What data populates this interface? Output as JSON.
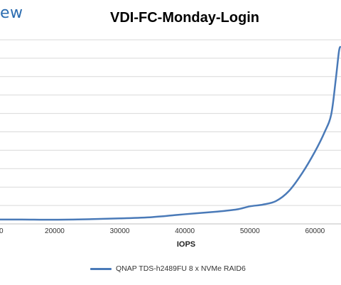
{
  "header": {
    "logo_text": "ew"
  },
  "chart_data": {
    "type": "line",
    "title": "VDI-FC-Monday-Login",
    "xlabel": "IOPS",
    "ylabel": "",
    "xlim": [
      11600,
      64000
    ],
    "x_ticks": [
      20000,
      30000,
      40000,
      50000,
      60000
    ],
    "x_tick_labels": [
      "20000",
      "30000",
      "40000",
      "50000",
      "60000"
    ],
    "y_gridlines": 11,
    "grid": "horizontal",
    "legend_position": "bottom",
    "series": [
      {
        "name": "QNAP TDS-h2489FU 8 x NVMe RAID6",
        "color": "#4a7ab8",
        "points": [
          [
            11600,
            1.0
          ],
          [
            15000,
            1.0
          ],
          [
            20000,
            0.95
          ],
          [
            25000,
            1.05
          ],
          [
            30000,
            1.25
          ],
          [
            35000,
            1.55
          ],
          [
            40000,
            2.2
          ],
          [
            45000,
            2.8
          ],
          [
            48000,
            3.3
          ],
          [
            50000,
            4.0
          ],
          [
            52000,
            4.4
          ],
          [
            54000,
            5.2
          ],
          [
            56000,
            7.5
          ],
          [
            58000,
            11.5
          ],
          [
            60000,
            16.5
          ],
          [
            61500,
            21.0
          ],
          [
            62500,
            25.0
          ],
          [
            63200,
            33.0
          ],
          [
            63700,
            39.5
          ],
          [
            64000,
            40.5
          ]
        ]
      }
    ]
  }
}
